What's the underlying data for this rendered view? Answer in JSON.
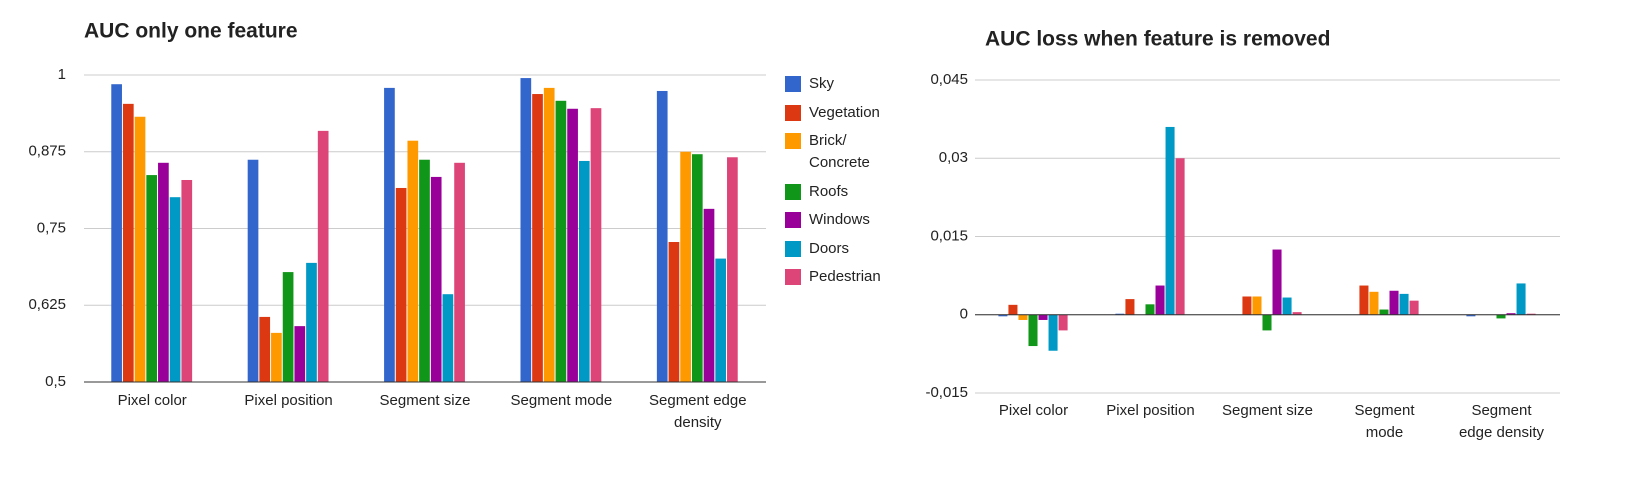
{
  "chart_data": [
    {
      "type": "bar",
      "title": "AUC only one feature",
      "categories": [
        "Pixel color",
        "Pixel position",
        "Segment size",
        "Segment mode",
        "Segment edge density"
      ],
      "series": [
        {
          "name": "Sky",
          "color": "#3366cc",
          "values": [
            0.985,
            0.862,
            0.979,
            0.995,
            0.974
          ]
        },
        {
          "name": "Vegetation",
          "color": "#dc3912",
          "values": [
            0.953,
            0.606,
            0.816,
            0.969,
            0.728
          ]
        },
        {
          "name": "Brick/ Concrete",
          "color": "#ff9900",
          "values": [
            0.932,
            0.58,
            0.893,
            0.979,
            0.875
          ]
        },
        {
          "name": "Roofs",
          "color": "#109618",
          "values": [
            0.837,
            0.679,
            0.862,
            0.958,
            0.871
          ]
        },
        {
          "name": "Windows",
          "color": "#990099",
          "values": [
            0.857,
            0.591,
            0.834,
            0.945,
            0.782
          ]
        },
        {
          "name": "Doors",
          "color": "#0099c6",
          "values": [
            0.801,
            0.694,
            0.643,
            0.86,
            0.701
          ]
        },
        {
          "name": "Pedestrian",
          "color": "#dd4477",
          "values": [
            0.829,
            0.909,
            0.857,
            0.946,
            0.866
          ]
        }
      ],
      "ylim": [
        0.5,
        1
      ],
      "yticks": [
        {
          "value": 0.5,
          "label": "0,5"
        },
        {
          "value": 0.625,
          "label": "0,625"
        },
        {
          "value": 0.75,
          "label": "0,75"
        },
        {
          "value": 0.875,
          "label": "0,875"
        },
        1
      ],
      "grid": true,
      "legend": "right"
    },
    {
      "type": "bar",
      "title": "AUC loss when feature is removed",
      "categories": [
        "Pixel color",
        "Pixel position",
        "Segment size",
        "Segment mode",
        "Segment edge density"
      ],
      "series": [
        {
          "color": "#3366cc",
          "values": [
            -0.0003,
            0.0002,
            0,
            0,
            -0.0003
          ]
        },
        {
          "color": "#dc3912",
          "values": [
            0.0019,
            0.003,
            0.0035,
            0.0056,
            0
          ]
        },
        {
          "color": "#ff9900",
          "values": [
            -0.001,
            0,
            0.0035,
            0.0044,
            0
          ]
        },
        {
          "color": "#109618",
          "values": [
            -0.006,
            0.002,
            -0.003,
            0.001,
            -0.0007
          ]
        },
        {
          "color": "#990099",
          "values": [
            -0.001,
            0.0056,
            0.0125,
            0.0046,
            0.0003
          ]
        },
        {
          "color": "#0099c6",
          "values": [
            -0.0069,
            0.036,
            0.0033,
            0.004,
            0.006
          ]
        },
        {
          "color": "#dd4477",
          "values": [
            -0.003,
            0.03,
            0.0005,
            0.0027,
            0.0002
          ]
        }
      ],
      "ylim": [
        -0.015,
        0.045
      ],
      "yticks": [
        {
          "value": -0.015,
          "label": "-0,015"
        },
        0,
        {
          "value": 0.015,
          "label": "0,015"
        },
        {
          "value": 0.03,
          "label": "0,03"
        },
        {
          "value": 0.045,
          "label": "0,045"
        }
      ],
      "grid": true
    }
  ]
}
